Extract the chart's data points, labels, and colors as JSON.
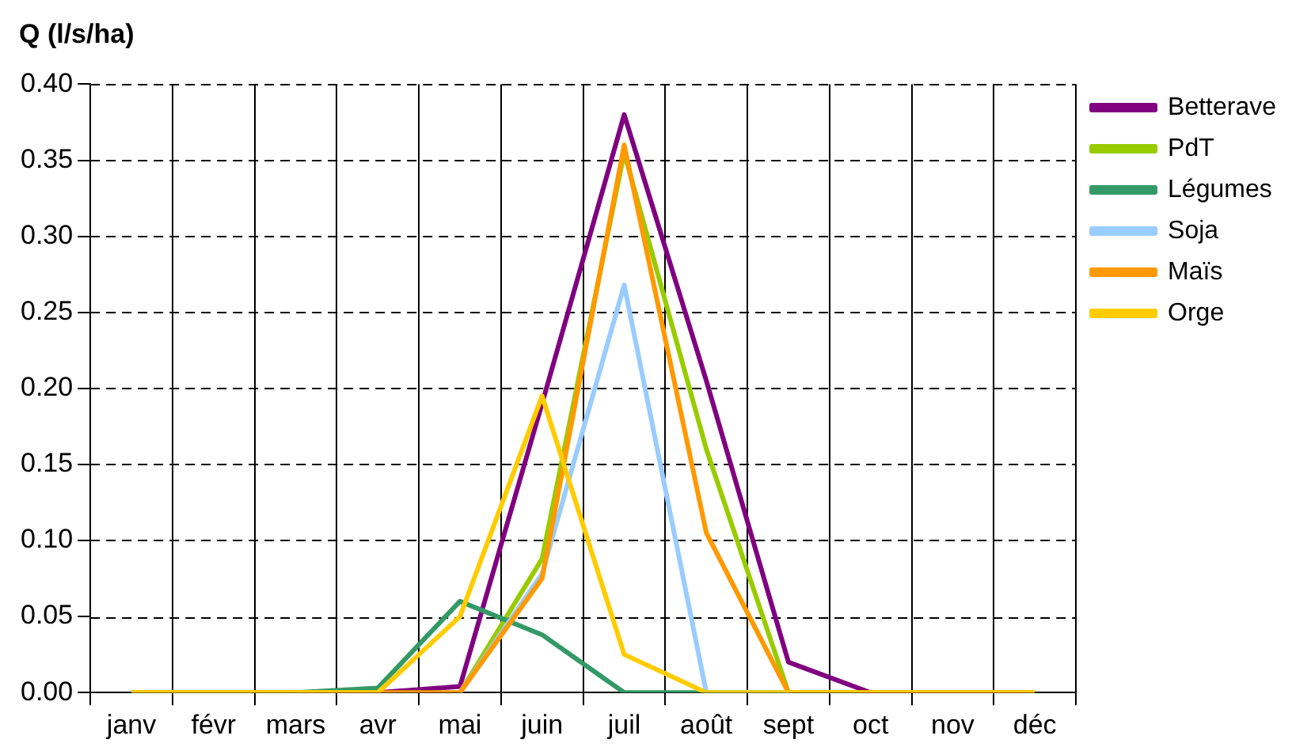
{
  "chart_data": {
    "type": "line",
    "ylabel": "Q (l/s/ha)",
    "categories": [
      "janv",
      "févr",
      "mars",
      "avr",
      "mai",
      "juin",
      "juil",
      "août",
      "sept",
      "oct",
      "nov",
      "déc"
    ],
    "series": [
      {
        "name": "Betterave",
        "color": "#800080",
        "values": [
          null,
          null,
          0,
          0,
          0.004,
          0.19,
          0.38,
          0.205,
          0.02,
          0,
          0,
          0
        ]
      },
      {
        "name": "PdT",
        "color": "#99cc00",
        "values": [
          null,
          null,
          null,
          null,
          0,
          0.088,
          0.355,
          0.16,
          0,
          null,
          null,
          null
        ]
      },
      {
        "name": "Légumes",
        "color": "#339966",
        "values": [
          0,
          0,
          0,
          0.003,
          0.06,
          0.038,
          0,
          0,
          0,
          null,
          null,
          null
        ]
      },
      {
        "name": "Soja",
        "color": "#99ccff",
        "values": [
          null,
          null,
          null,
          null,
          0,
          0.078,
          0.268,
          0,
          0,
          null,
          null,
          null
        ]
      },
      {
        "name": "Maïs",
        "color": "#ff9900",
        "values": [
          0,
          0,
          0,
          0,
          0,
          0.075,
          0.36,
          0.105,
          0,
          0,
          0,
          0
        ]
      },
      {
        "name": "Orge",
        "color": "#ffcc00",
        "values": [
          0,
          0,
          0,
          0,
          0.05,
          0.195,
          0.025,
          0,
          0,
          0,
          0,
          0
        ]
      }
    ],
    "ylim": [
      0,
      0.4
    ],
    "yticks": [
      {
        "value": 0,
        "label": "0.00"
      },
      {
        "value": 0.05,
        "label": "0.05"
      },
      {
        "value": 0.1,
        "label": "0.10"
      },
      {
        "value": 0.15,
        "label": "0.15"
      },
      {
        "value": 0.2,
        "label": "0.20"
      },
      {
        "value": 0.25,
        "label": "0.25"
      },
      {
        "value": 0.3,
        "label": "0.30"
      },
      {
        "value": 0.35,
        "label": "0.35"
      },
      {
        "value": 0.4,
        "label": "0.40"
      }
    ],
    "grid": true,
    "legend": "top right",
    "marker": "none",
    "line_style": "solid"
  }
}
